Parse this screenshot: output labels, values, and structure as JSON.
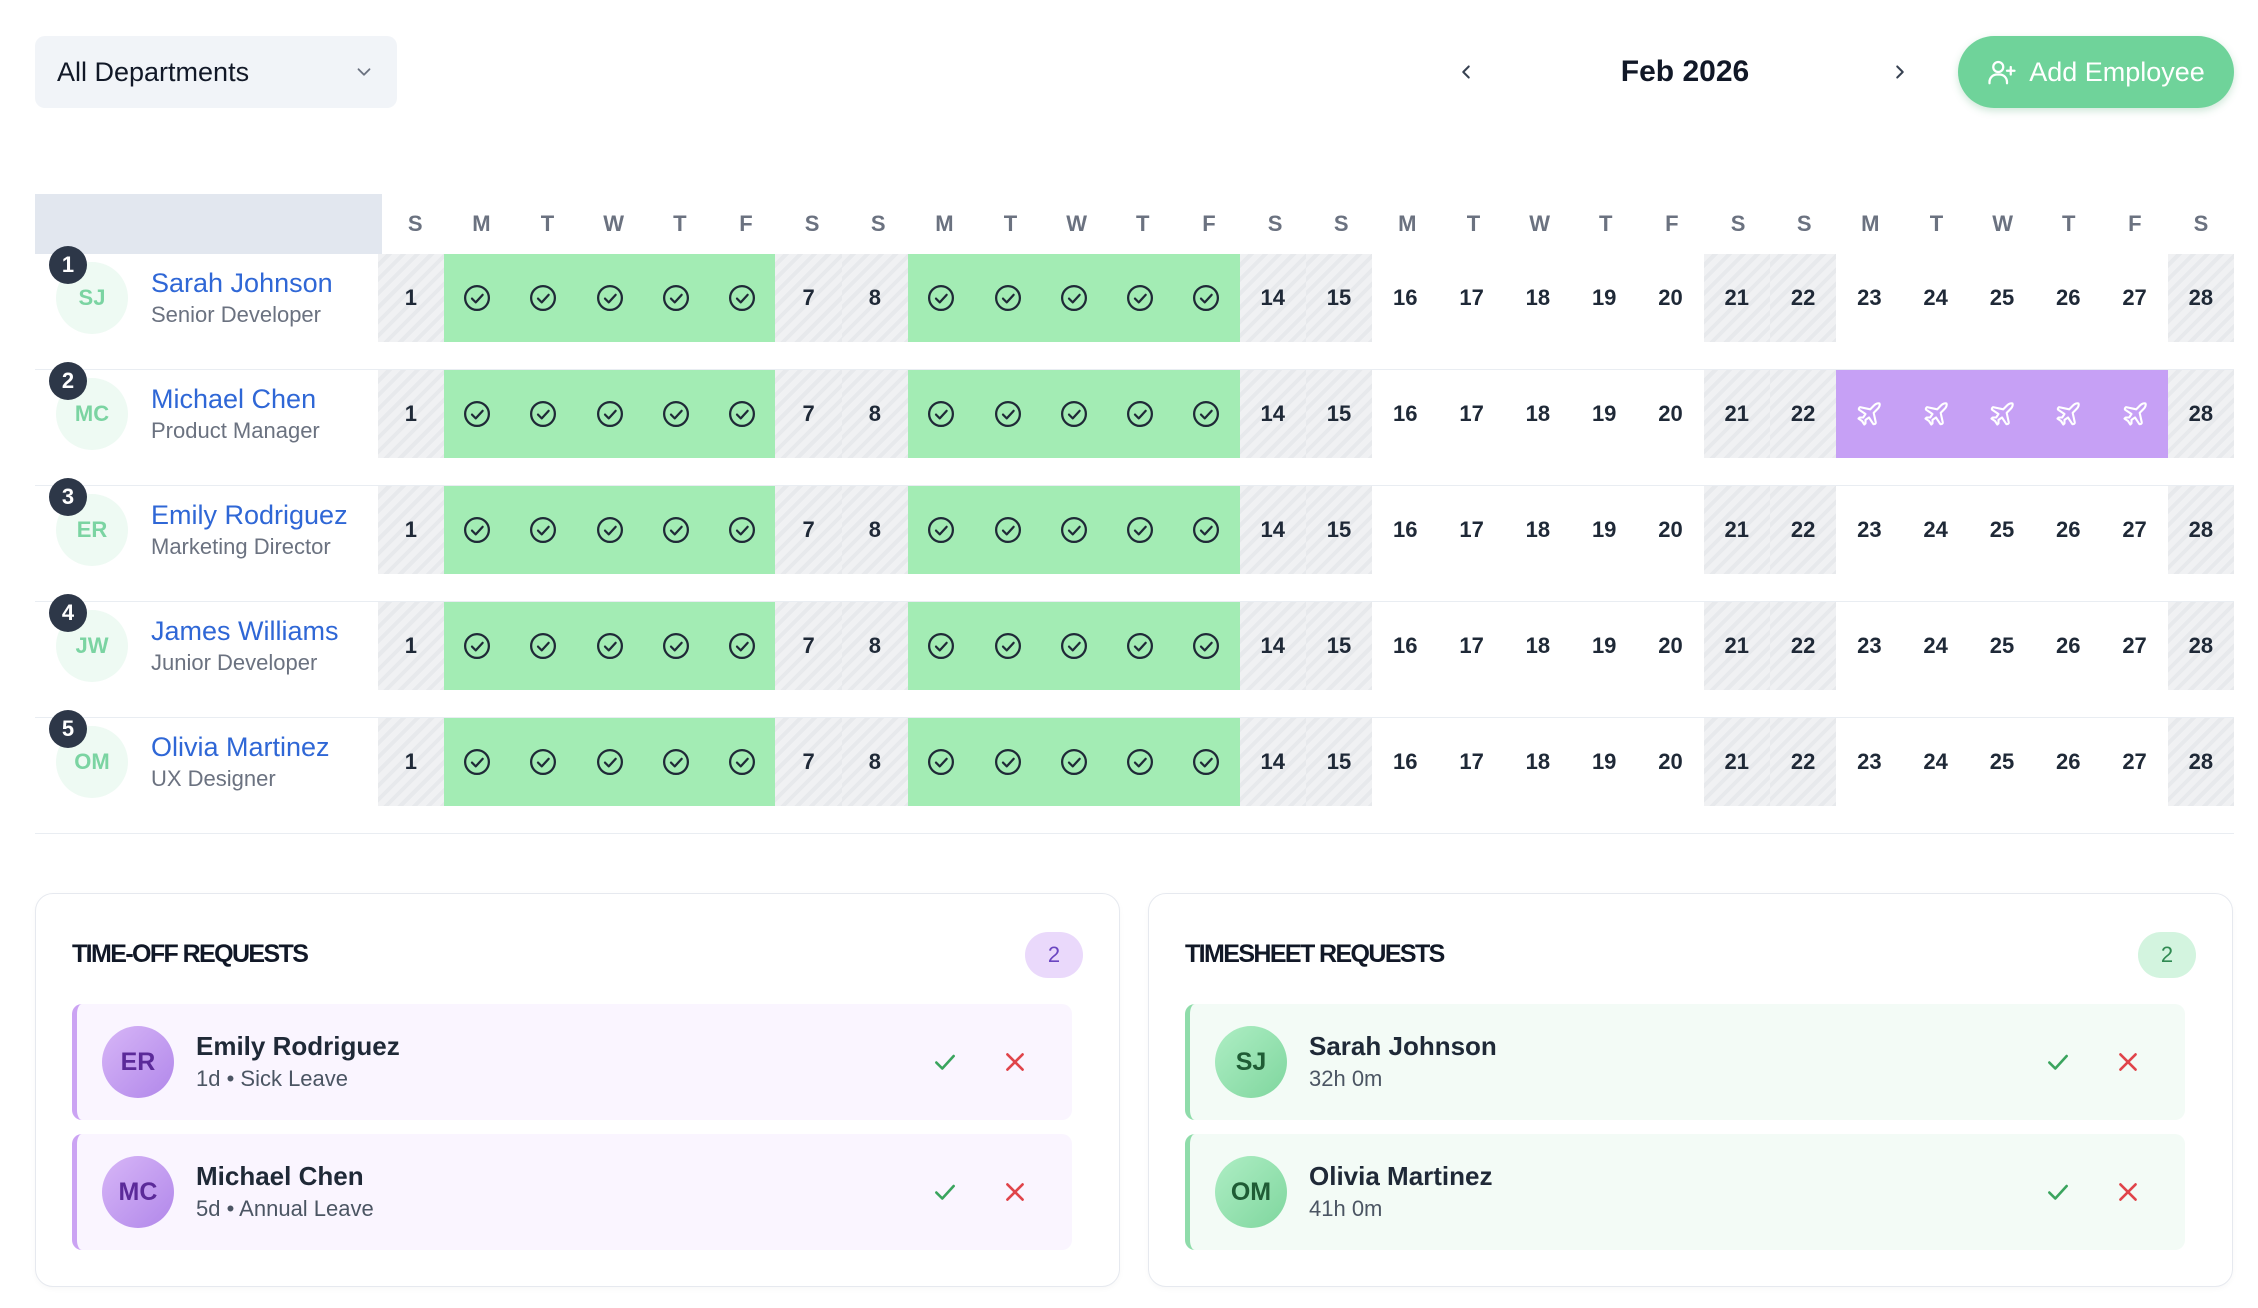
{
  "header": {
    "department_select": "All Departments",
    "month": "Feb 2026",
    "add_button": "Add Employee"
  },
  "calendar": {
    "weekdays": [
      "S",
      "M",
      "T",
      "W",
      "T",
      "F",
      "S",
      "S",
      "M",
      "T",
      "W",
      "T",
      "F",
      "S",
      "S",
      "M",
      "T",
      "W",
      "T",
      "F",
      "S",
      "S",
      "M",
      "T",
      "W",
      "T",
      "F",
      "S"
    ],
    "employees": [
      {
        "num": "1",
        "initials": "SJ",
        "name": "Sarah Johnson",
        "role": "Senior Developer",
        "vacation": []
      },
      {
        "num": "2",
        "initials": "MC",
        "name": "Michael Chen",
        "role": "Product Manager",
        "vacation": [
          23,
          24,
          25,
          26,
          27
        ]
      },
      {
        "num": "3",
        "initials": "ER",
        "name": "Emily Rodriguez",
        "role": "Marketing Director",
        "vacation": []
      },
      {
        "num": "4",
        "initials": "JW",
        "name": "James Williams",
        "role": "Junior Developer",
        "vacation": []
      },
      {
        "num": "5",
        "initials": "OM",
        "name": "Olivia Martinez",
        "role": "UX Designer",
        "vacation": []
      }
    ],
    "worked_days": [
      2,
      3,
      4,
      5,
      6,
      9,
      10,
      11,
      12,
      13
    ],
    "weekend_days": [
      1,
      7,
      8,
      14,
      15,
      21,
      22,
      28
    ]
  },
  "time_off": {
    "title": "TIME-OFF REQUESTS",
    "count": "2",
    "requests": [
      {
        "initials": "ER",
        "name": "Emily Rodriguez",
        "detail": "1d • Sick Leave"
      },
      {
        "initials": "MC",
        "name": "Michael Chen",
        "detail": "5d • Annual Leave"
      }
    ]
  },
  "timesheet": {
    "title": "TIMESHEET REQUESTS",
    "count": "2",
    "requests": [
      {
        "initials": "SJ",
        "name": "Sarah Johnson",
        "detail": "32h 0m"
      },
      {
        "initials": "OM",
        "name": "Olivia Martinez",
        "detail": "41h 0m"
      }
    ]
  },
  "colors": {
    "accent": "#6fd39a",
    "worked": "#a3ecb4",
    "vacation": "#c6a0f5",
    "link": "#2f67d6"
  }
}
